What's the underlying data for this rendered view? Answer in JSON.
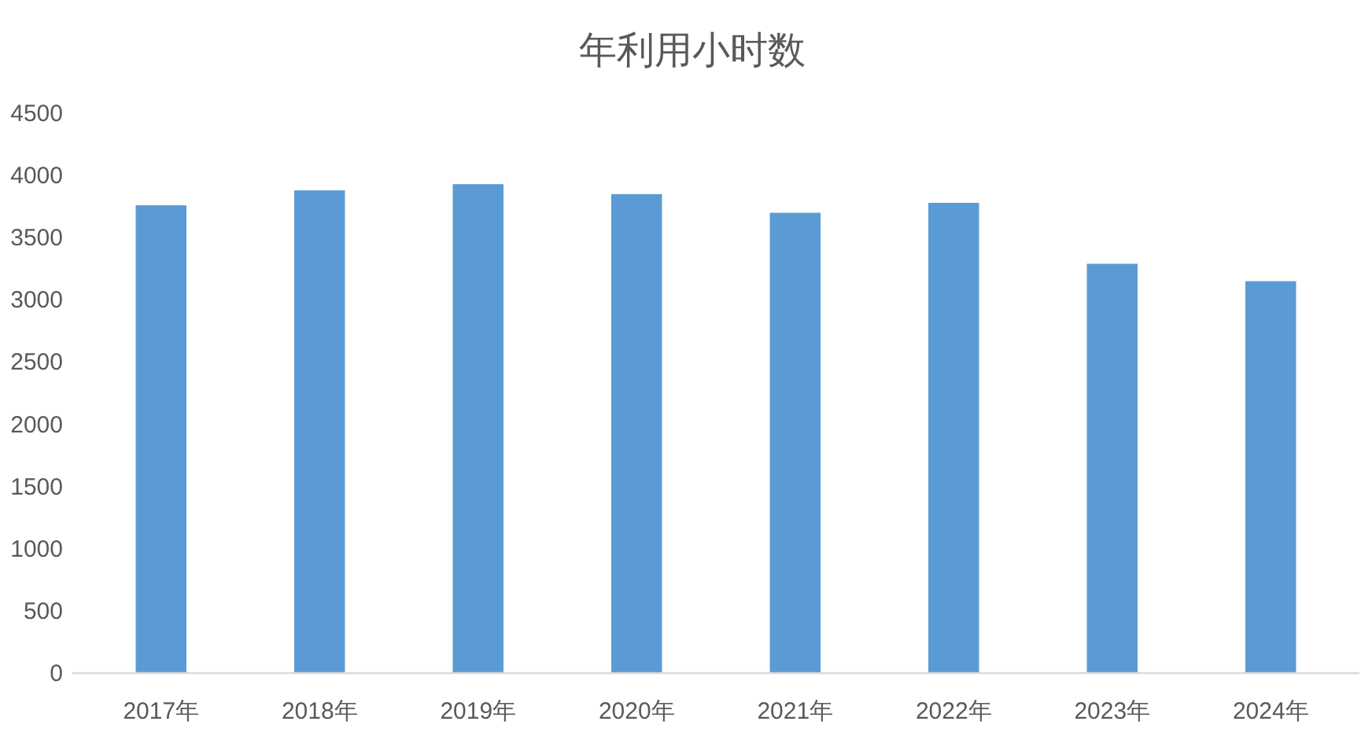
{
  "chart_data": {
    "type": "bar",
    "title": "年利用小时数",
    "categories": [
      "2017年",
      "2018年",
      "2019年",
      "2020年",
      "2021年",
      "2022年",
      "2023年",
      "2024年"
    ],
    "values": [
      3760,
      3880,
      3930,
      3850,
      3700,
      3780,
      3290,
      3150
    ],
    "color": "#5b9bd5",
    "ylim": [
      0,
      4500
    ],
    "yticks": [
      0,
      500,
      1000,
      1500,
      2000,
      2500,
      3000,
      3500,
      4000,
      4500
    ]
  }
}
